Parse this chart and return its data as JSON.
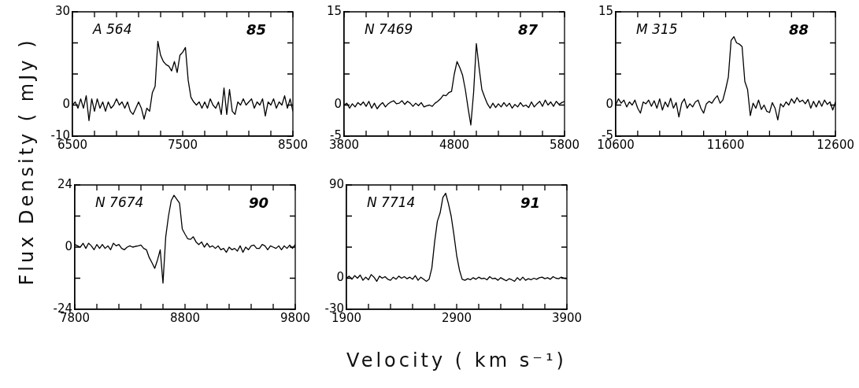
{
  "chart_data": [
    {
      "type": "line",
      "ylabel": "Flux Density ( mJy )",
      "annotations": [
        "A 564",
        "85"
      ],
      "x": [
        6500,
        6525,
        6550,
        6575,
        6600,
        6625,
        6650,
        6675,
        6700,
        6725,
        6750,
        6775,
        6800,
        6825,
        6850,
        6875,
        6900,
        6925,
        6950,
        6975,
        7000,
        7025,
        7050,
        7075,
        7100,
        7125,
        7150,
        7175,
        7200,
        7225,
        7250,
        7275,
        7300,
        7325,
        7350,
        7375,
        7400,
        7425,
        7450,
        7475,
        7500,
        7525,
        7550,
        7575,
        7600,
        7625,
        7650,
        7675,
        7700,
        7725,
        7750,
        7775,
        7800,
        7825,
        7850,
        7875,
        7900,
        7925,
        7950,
        7975,
        8000,
        8025,
        8050,
        8075,
        8100,
        8125,
        8150,
        8175,
        8200,
        8225,
        8250,
        8275,
        8300,
        8325,
        8350,
        8375,
        8400,
        8425,
        8450,
        8475,
        8500
      ],
      "series": [
        {
          "color": "#000000",
          "values": [
            0,
            1,
            -1,
            2,
            -1,
            3,
            -5,
            2,
            -2,
            2,
            -1,
            1,
            -2,
            1,
            -1,
            0,
            2,
            0,
            1,
            -1,
            1,
            -2,
            -3,
            -1,
            1,
            -1,
            -4.5,
            -1,
            -2,
            4,
            6,
            20.5,
            16,
            14,
            13,
            12.5,
            11,
            14,
            10.5,
            16,
            17,
            18.5,
            8,
            2.5,
            1,
            0,
            1,
            -1,
            1,
            -1,
            2,
            0,
            -1,
            1,
            -3,
            5.5,
            -3,
            5,
            -2,
            -3,
            1,
            0,
            2,
            0,
            1,
            2,
            -1,
            1,
            0,
            2,
            -3.5,
            1,
            0,
            2,
            -1,
            1,
            0,
            3,
            -1,
            2,
            -2
          ]
        }
      ],
      "xlim": [
        6500,
        8500
      ],
      "ylim": [
        -10,
        30
      ],
      "xticks": [
        6500,
        {
          "value": 6700,
          "label": null
        },
        {
          "value": 6900,
          "label": null
        },
        {
          "value": 7100,
          "label": null
        },
        {
          "value": 7300,
          "label": null
        },
        7500,
        {
          "value": 7700,
          "label": null
        },
        {
          "value": 7900,
          "label": null
        },
        {
          "value": 8100,
          "label": null
        },
        {
          "value": 8300,
          "label": null
        },
        8500
      ],
      "yticks": [
        -10,
        0,
        {
          "value": 10,
          "label": null
        },
        {
          "value": 20,
          "label": null
        },
        30
      ]
    },
    {
      "type": "line",
      "annotations": [
        "N 7469",
        "87"
      ],
      "x": [
        3800,
        3825,
        3850,
        3875,
        3900,
        3925,
        3950,
        3975,
        4000,
        4025,
        4050,
        4075,
        4100,
        4125,
        4150,
        4175,
        4200,
        4225,
        4250,
        4275,
        4300,
        4325,
        4350,
        4375,
        4400,
        4425,
        4450,
        4475,
        4500,
        4525,
        4550,
        4575,
        4600,
        4625,
        4650,
        4675,
        4700,
        4725,
        4750,
        4775,
        4800,
        4825,
        4850,
        4875,
        4900,
        4925,
        4950,
        4975,
        5000,
        5025,
        5050,
        5075,
        5100,
        5125,
        5150,
        5175,
        5200,
        5225,
        5250,
        5275,
        5300,
        5325,
        5350,
        5375,
        5400,
        5425,
        5450,
        5475,
        5500,
        5525,
        5550,
        5575,
        5600,
        5625,
        5650,
        5675,
        5700,
        5725,
        5750,
        5775,
        5800
      ],
      "series": [
        {
          "color": "#000000",
          "values": [
            0,
            0.3,
            -0.5,
            0.2,
            -0.3,
            0.4,
            0,
            0.5,
            -0.2,
            0.6,
            -0.5,
            0.3,
            -0.6,
            0,
            0.4,
            -0.3,
            0.2,
            0.5,
            0.7,
            0.2,
            0.3,
            0.7,
            0.1,
            0.6,
            0.3,
            -0.2,
            0.3,
            -0.1,
            0.4,
            -0.3,
            -0.1,
            0,
            -0.2,
            0.3,
            0.6,
            1,
            1.6,
            1.5,
            2,
            2.2,
            5,
            7,
            6,
            4.8,
            2.5,
            -0.5,
            -3.2,
            2,
            9.9,
            6,
            2.5,
            1.3,
            0.2,
            -0.5,
            0.3,
            -0.4,
            0.2,
            -0.3,
            0.4,
            -0.2,
            0.3,
            -0.5,
            0.1,
            -0.3,
            0.4,
            -0.2,
            0,
            -0.4,
            0.5,
            -0.3,
            0.2,
            0.6,
            -0.2,
            0.8,
            0,
            0.5,
            -0.2,
            0.6,
            0.1,
            0.4,
            0.6
          ]
        }
      ],
      "xlim": [
        3800,
        5800
      ],
      "ylim": [
        -5,
        15
      ],
      "xticks": [
        3800,
        {
          "value": 4000,
          "label": null
        },
        {
          "value": 4200,
          "label": null
        },
        {
          "value": 4400,
          "label": null
        },
        {
          "value": 4600,
          "label": null
        },
        4800,
        {
          "value": 5000,
          "label": null
        },
        {
          "value": 5200,
          "label": null
        },
        {
          "value": 5400,
          "label": null
        },
        {
          "value": 5600,
          "label": null
        },
        5800
      ],
      "yticks": [
        -5,
        0,
        {
          "value": 5,
          "label": null
        },
        {
          "value": 10,
          "label": null
        },
        15
      ]
    },
    {
      "type": "line",
      "annotations": [
        "M 315",
        "88"
      ],
      "x": [
        10600,
        10625,
        10650,
        10675,
        10700,
        10725,
        10750,
        10775,
        10800,
        10825,
        10850,
        10875,
        10900,
        10925,
        10950,
        10975,
        11000,
        11025,
        11050,
        11075,
        11100,
        11125,
        11150,
        11175,
        11200,
        11225,
        11250,
        11275,
        11300,
        11325,
        11350,
        11375,
        11400,
        11425,
        11450,
        11475,
        11500,
        11525,
        11550,
        11575,
        11600,
        11625,
        11650,
        11675,
        11700,
        11725,
        11750,
        11775,
        11800,
        11825,
        11850,
        11875,
        11900,
        11925,
        11950,
        11975,
        12000,
        12025,
        12050,
        12075,
        12100,
        12125,
        12150,
        12175,
        12200,
        12225,
        12250,
        12275,
        12300,
        12325,
        12350,
        12375,
        12400,
        12425,
        12450,
        12475,
        12500,
        12525,
        12550,
        12575,
        12600
      ],
      "series": [
        {
          "color": "#000000",
          "values": [
            0,
            1,
            0.3,
            0.8,
            -0.3,
            0.5,
            0,
            0.8,
            -0.5,
            -1.3,
            0.5,
            0.2,
            0.8,
            -0.2,
            0.7,
            -0.5,
            1,
            -0.8,
            0.5,
            -0.3,
            1.1,
            -0.5,
            0.4,
            -1.9,
            0.3,
            1,
            -0.5,
            0.2,
            -0.3,
            0.5,
            0.8,
            -0.5,
            -1.3,
            0.2,
            0.6,
            0.3,
            1,
            1.5,
            0.3,
            0.8,
            2.5,
            4.5,
            10.4,
            11,
            10,
            9.8,
            9.4,
            3.8,
            2.5,
            -1.7,
            0.3,
            -0.5,
            0.8,
            -0.7,
            0,
            -1,
            -1.2,
            0.4,
            -0.5,
            -2.4,
            0.2,
            -0.3,
            0.5,
            0,
            1,
            0.3,
            1.2,
            0.5,
            0.8,
            0.2,
            0.9,
            -0.5,
            0.6,
            -0.3,
            0.7,
            -0.2,
            0.8,
            0.1,
            0.5,
            -0.8,
            0.5
          ]
        }
      ],
      "xlim": [
        10600,
        12600
      ],
      "ylim": [
        -5,
        15
      ],
      "xticks": [
        10600,
        {
          "value": 10800,
          "label": null
        },
        {
          "value": 11000,
          "label": null
        },
        {
          "value": 11200,
          "label": null
        },
        {
          "value": 11400,
          "label": null
        },
        11600,
        {
          "value": 11800,
          "label": null
        },
        {
          "value": 12000,
          "label": null
        },
        {
          "value": 12200,
          "label": null
        },
        {
          "value": 12400,
          "label": null
        },
        12600
      ],
      "yticks": [
        -5,
        0,
        {
          "value": 5,
          "label": null
        },
        {
          "value": 10,
          "label": null
        },
        15
      ]
    },
    {
      "type": "line",
      "annotations": [
        "N 7674",
        "90"
      ],
      "x": [
        7800,
        7825,
        7850,
        7875,
        7900,
        7925,
        7950,
        7975,
        8000,
        8025,
        8050,
        8075,
        8100,
        8125,
        8150,
        8175,
        8200,
        8225,
        8250,
        8275,
        8300,
        8325,
        8350,
        8375,
        8400,
        8425,
        8450,
        8475,
        8500,
        8525,
        8550,
        8575,
        8600,
        8625,
        8650,
        8675,
        8700,
        8725,
        8750,
        8775,
        8800,
        8825,
        8850,
        8875,
        8900,
        8925,
        8950,
        8975,
        9000,
        9025,
        9050,
        9075,
        9100,
        9125,
        9150,
        9175,
        9200,
        9225,
        9250,
        9275,
        9300,
        9325,
        9350,
        9375,
        9400,
        9425,
        9450,
        9475,
        9500,
        9525,
        9550,
        9575,
        9600,
        9625,
        9650,
        9675,
        9700,
        9725,
        9750,
        9775,
        9800
      ],
      "series": [
        {
          "color": "#000000",
          "values": [
            1,
            0.5,
            0,
            1.5,
            -0.5,
            1.5,
            0.5,
            -1,
            1,
            -0.5,
            1,
            -0.5,
            0.5,
            -1,
            1.5,
            0.5,
            1,
            -0.5,
            -1,
            0,
            0.5,
            0,
            0.3,
            0.5,
            0.8,
            -0.5,
            -1,
            -4,
            -6,
            -8.2,
            -5,
            -1,
            -13.9,
            4,
            12,
            18,
            20,
            18.5,
            17,
            7,
            5,
            3.2,
            3,
            4,
            2,
            1,
            2,
            0,
            1.5,
            0,
            0.5,
            -0.5,
            0.5,
            -1,
            -0.5,
            -2,
            0,
            -1,
            -0.5,
            -1.5,
            0.5,
            -2,
            0,
            -1,
            0.5,
            0.8,
            -0.5,
            -0.5,
            1,
            0.5,
            -1,
            0.5,
            0,
            -0.5,
            0.5,
            -1,
            0.5,
            -0.5,
            0.8,
            -0.5,
            1
          ]
        }
      ],
      "xlim": [
        7800,
        9800
      ],
      "ylim": [
        -24,
        24
      ],
      "xticks": [
        7800,
        {
          "value": 8000,
          "label": null
        },
        {
          "value": 8200,
          "label": null
        },
        {
          "value": 8400,
          "label": null
        },
        {
          "value": 8600,
          "label": null
        },
        8800,
        {
          "value": 9000,
          "label": null
        },
        {
          "value": 9200,
          "label": null
        },
        {
          "value": 9400,
          "label": null
        },
        {
          "value": 9600,
          "label": null
        },
        9800
      ],
      "yticks": [
        -24,
        {
          "value": -12,
          "label": null
        },
        0,
        {
          "value": 12,
          "label": null
        },
        24
      ]
    },
    {
      "type": "line",
      "xlabel": "Velocity ( km s⁻¹)",
      "annotations": [
        "N 7714",
        "91"
      ],
      "x": [
        1900,
        1925,
        1950,
        1975,
        2000,
        2025,
        2050,
        2075,
        2100,
        2125,
        2150,
        2175,
        2200,
        2225,
        2250,
        2275,
        2300,
        2325,
        2350,
        2375,
        2400,
        2425,
        2450,
        2475,
        2500,
        2525,
        2550,
        2575,
        2600,
        2625,
        2650,
        2675,
        2700,
        2725,
        2750,
        2775,
        2800,
        2825,
        2850,
        2875,
        2900,
        2925,
        2950,
        2975,
        3000,
        3025,
        3050,
        3075,
        3100,
        3125,
        3150,
        3175,
        3200,
        3225,
        3250,
        3275,
        3300,
        3325,
        3350,
        3375,
        3400,
        3425,
        3450,
        3475,
        3500,
        3525,
        3550,
        3575,
        3600,
        3625,
        3650,
        3675,
        3700,
        3725,
        3750,
        3775,
        3800,
        3825,
        3850,
        3875,
        3900
      ],
      "series": [
        {
          "color": "#000000",
          "values": [
            0,
            2,
            -1,
            2.5,
            0,
            3,
            -2,
            1,
            -1.5,
            3.5,
            1,
            -3,
            2,
            0,
            1.5,
            -1,
            -2,
            1,
            -1,
            2,
            0,
            1.5,
            -0.5,
            1,
            -1,
            2.5,
            -2,
            1,
            -1,
            -3,
            -1,
            10,
            35,
            55,
            63,
            78,
            82,
            72,
            60,
            42,
            22,
            8,
            -1,
            -2,
            -0.5,
            -1.5,
            0.5,
            -1,
            1,
            -0.5,
            0,
            -1.5,
            1.5,
            -0.5,
            0,
            -2,
            0.5,
            -1,
            -2.5,
            -0.5,
            -1.5,
            -3,
            0.5,
            -2,
            1,
            -2,
            -0.5,
            -1.5,
            0,
            -1,
            0.5,
            1,
            -0.5,
            0.5,
            -1,
            1.5,
            0,
            -0.5,
            1,
            0,
            -0.5
          ]
        }
      ],
      "xlim": [
        1900,
        3900
      ],
      "ylim": [
        -30,
        90
      ],
      "xticks": [
        1900,
        {
          "value": 2100,
          "label": null
        },
        {
          "value": 2300,
          "label": null
        },
        {
          "value": 2500,
          "label": null
        },
        {
          "value": 2700,
          "label": null
        },
        2900,
        {
          "value": 3100,
          "label": null
        },
        {
          "value": 3300,
          "label": null
        },
        {
          "value": 3500,
          "label": null
        },
        {
          "value": 3700,
          "label": null
        },
        3900
      ],
      "yticks": [
        -30,
        0,
        {
          "value": 30,
          "label": null
        },
        {
          "value": 60,
          "label": null
        },
        90
      ]
    }
  ]
}
